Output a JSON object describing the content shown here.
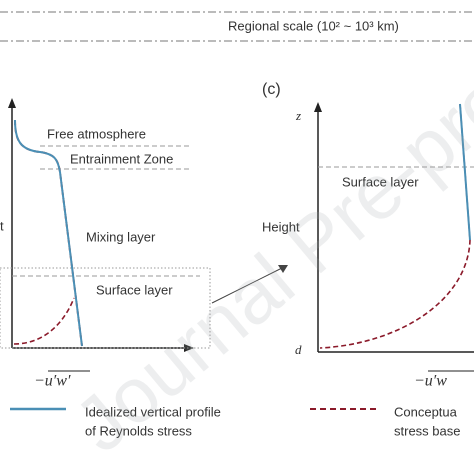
{
  "header": {
    "scale": "Regional scale (10² ~ 10³ km)"
  },
  "left_panel": {
    "layers": [
      "Free atmosphere",
      "Entrainment Zone",
      "Mixing layer",
      "Surface layer"
    ],
    "y_label": "t",
    "x_label": "−u′w′"
  },
  "right_panel": {
    "panel": "(c)",
    "z_label": "z",
    "layer": "Surface layer",
    "y_label": "Height",
    "d_label": "d",
    "x_label": "−u′w"
  },
  "legend": [
    {
      "line1": "Idealized vertical profile",
      "line2": "of Reynolds stress"
    },
    {
      "line1": "Conceptua",
      "line2": "stress base"
    }
  ],
  "watermark": "Journal Pre-proof"
}
